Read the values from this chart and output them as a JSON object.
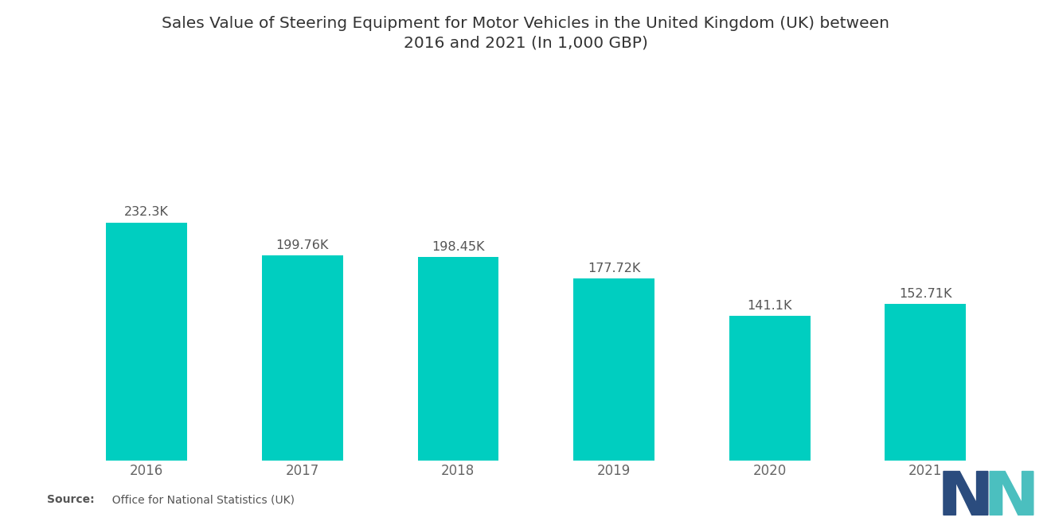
{
  "title": "Sales Value of Steering Equipment for Motor Vehicles in the United Kingdom (UK) between\n2016 and 2021 (In 1,000 GBP)",
  "categories": [
    "2016",
    "2017",
    "2018",
    "2019",
    "2020",
    "2021"
  ],
  "values": [
    232.3,
    199.76,
    198.45,
    177.72,
    141.1,
    152.71
  ],
  "labels": [
    "232.3K",
    "199.76K",
    "198.45K",
    "177.72K",
    "141.1K",
    "152.71K"
  ],
  "bar_color": "#00CEC0",
  "background_color": "#ffffff",
  "title_fontsize": 14.5,
  "label_fontsize": 11.5,
  "tick_fontsize": 12,
  "source_bold": "Source:",
  "source_rest": "  Office for National Statistics (UK)",
  "ylim": [
    0,
    310
  ],
  "logo_dark": "#2B4C7E",
  "logo_teal": "#4BBFBF"
}
